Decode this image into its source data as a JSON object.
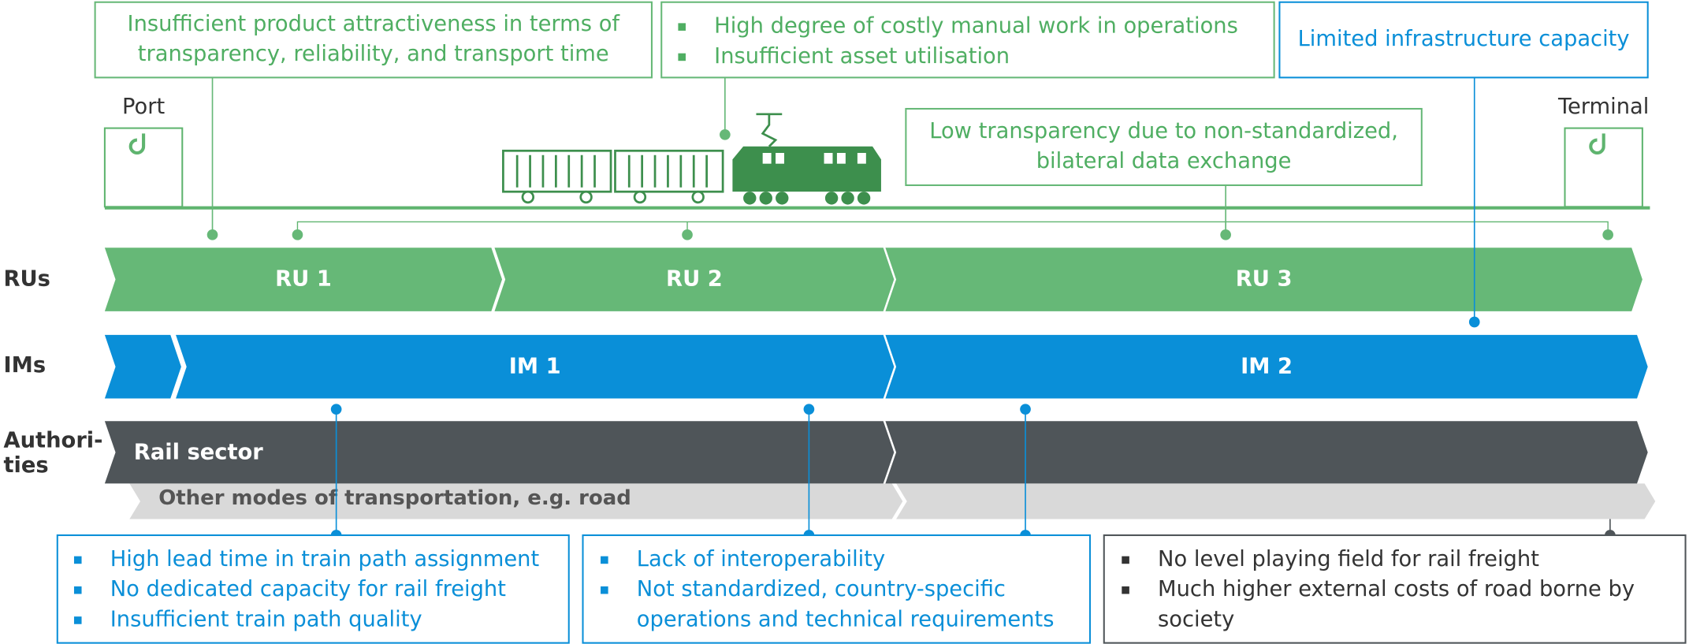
{
  "locations": [
    "Port",
    "Terminal"
  ],
  "row_labels": [
    [
      "RUs"
    ],
    [
      "IMs"
    ],
    [
      "Authori-",
      "ties"
    ]
  ],
  "chevrons": {
    "rus": [
      "RU 1",
      "RU 2",
      "RU 3"
    ],
    "ims": [
      "IM 1",
      "IM 2"
    ],
    "authorities": [
      "Rail sector"
    ],
    "other": "Other modes of transportation, e.g. road"
  },
  "callouts": [
    {
      "lines": [
        "Insufficient product attractiveness in terms of",
        "transparency, reliability, and transport time"
      ]
    },
    {
      "items": [
        [
          "High degree of costly manual work in operations"
        ],
        [
          "Insufficient asset utilisation"
        ]
      ]
    },
    {
      "lines": [
        "Limited infrastructure capacity"
      ]
    },
    {
      "lines": [
        "Low transparency due to non-standardized,",
        "bilateral data exchange"
      ]
    },
    {
      "items": [
        [
          "High lead time in train path assignment"
        ],
        [
          "No dedicated capacity for rail freight"
        ],
        [
          "Insufficient train path quality"
        ]
      ]
    },
    {
      "items": [
        [
          "Lack of interoperability"
        ],
        [
          "Not standardized, country-specific",
          "operations and technical requirements"
        ]
      ]
    },
    {
      "items": [
        [
          "No level playing field for rail freight"
        ],
        [
          "Much higher external costs of road borne by",
          "society"
        ]
      ]
    }
  ]
}
